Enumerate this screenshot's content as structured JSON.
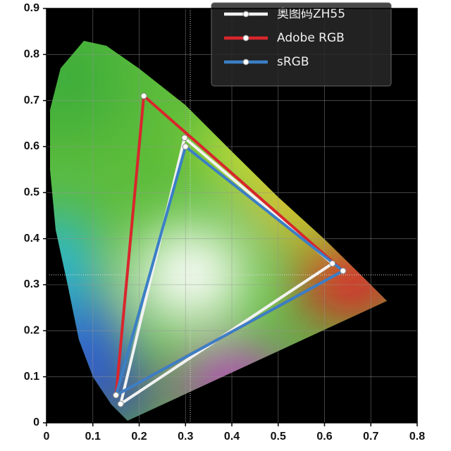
{
  "chart_data": {
    "type": "line",
    "series": [
      {
        "name": "奥图码ZH55",
        "color": "#f2f2f2",
        "x": [
          0.298,
          0.617,
          0.16
        ],
        "values": [
          0.619,
          0.346,
          0.041
        ]
      },
      {
        "name": "Adobe RGB",
        "color": "#d9262c",
        "x": [
          0.21,
          0.64,
          0.15
        ],
        "values": [
          0.71,
          0.33,
          0.06
        ]
      },
      {
        "name": "sRGB",
        "color": "#3b7fc6",
        "x": [
          0.3,
          0.64,
          0.15
        ],
        "values": [
          0.6,
          0.33,
          0.06
        ]
      }
    ],
    "xlim": [
      0,
      0.8
    ],
    "xticks": [
      0,
      0.1,
      0.2,
      0.3,
      0.4,
      0.5,
      0.6,
      0.7,
      0.8
    ],
    "ylim": [
      0,
      0.9
    ],
    "yticks": [
      0,
      0.1,
      0.2,
      0.3,
      0.4,
      0.5,
      0.6,
      0.7,
      0.8,
      0.9
    ],
    "grid": true,
    "legend": "upper right"
  }
}
